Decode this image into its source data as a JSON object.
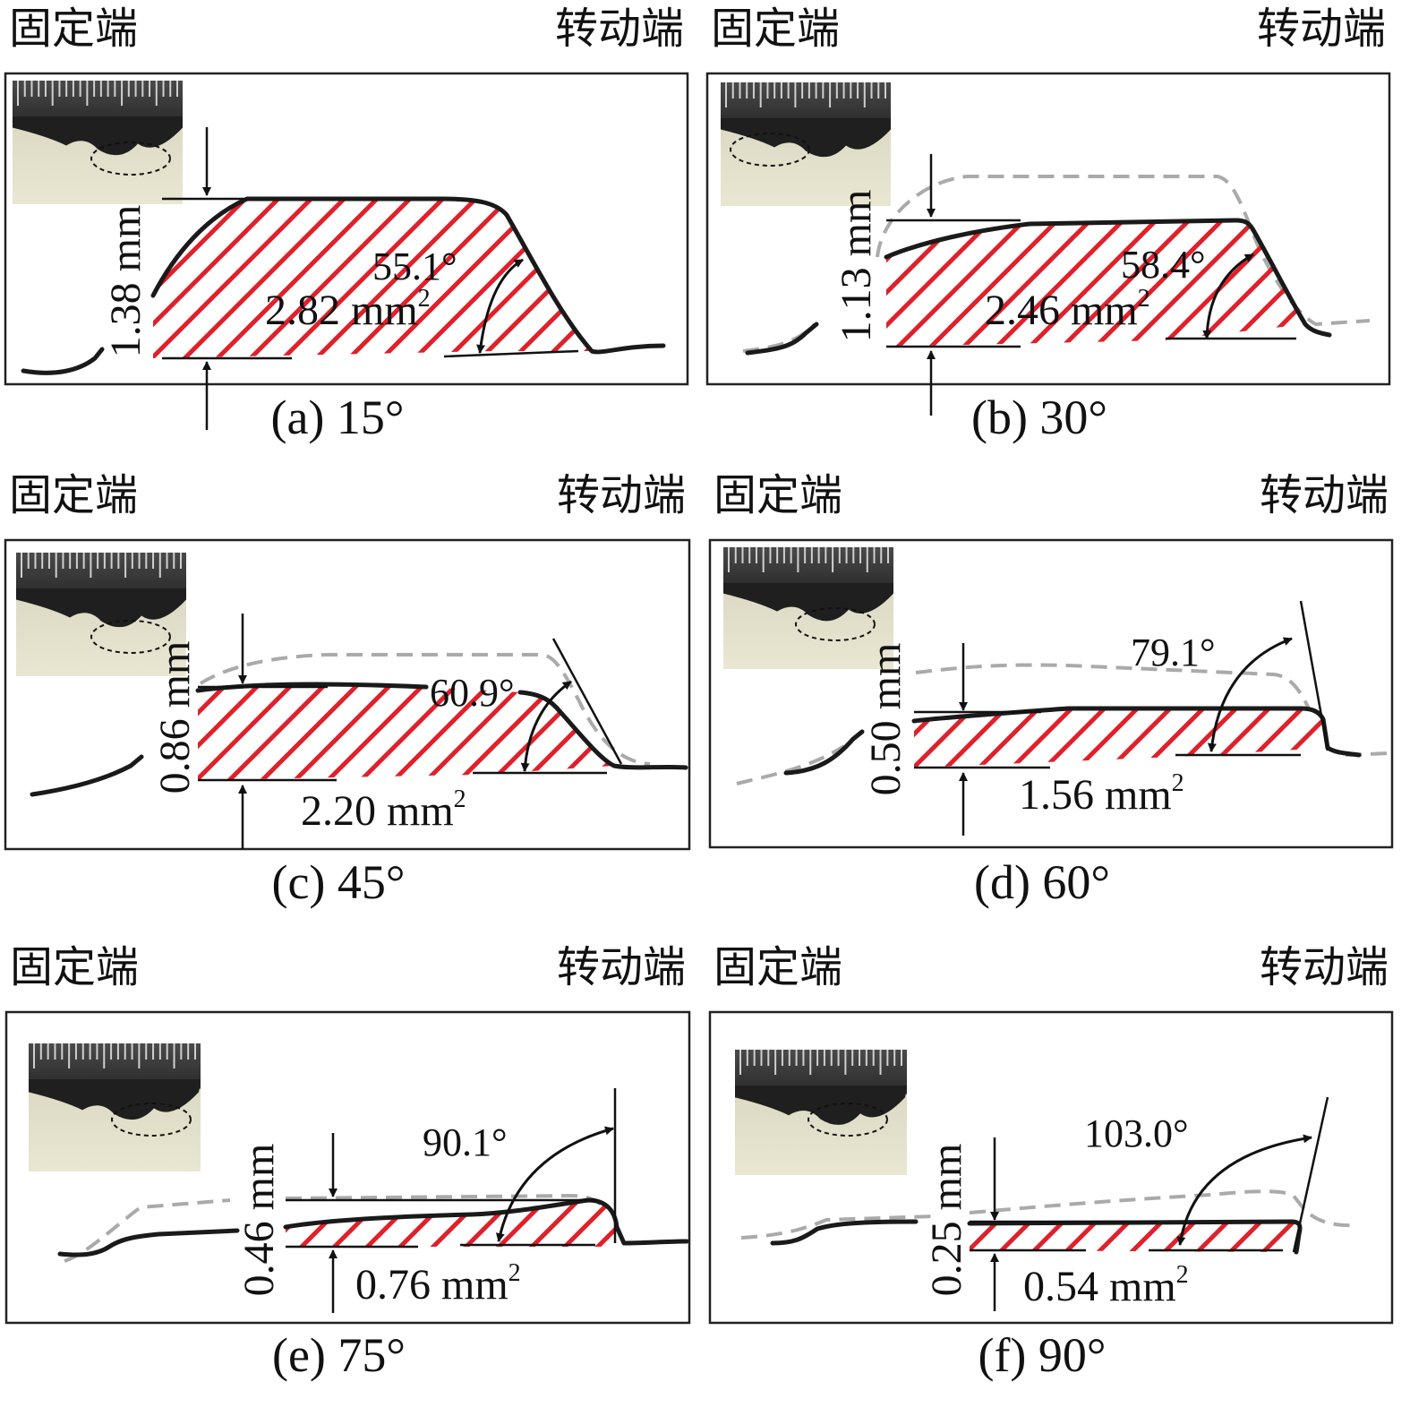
{
  "labels": {
    "fixed_end": "固定端",
    "rotating_end": "转动端",
    "area_unit": "mm",
    "area_exp": "2"
  },
  "colors": {
    "hatch": "#e0202a",
    "profile": "#1a1a1a",
    "reference_profile": "#aaaaaa",
    "frame": "#222222"
  },
  "panels": [
    {
      "id": "a",
      "caption": "(a) 15°",
      "height": "1.38 mm",
      "area": "2.82",
      "angle": "55.1°",
      "reference_shown": false
    },
    {
      "id": "b",
      "caption": "(b) 30°",
      "height": "1.13 mm",
      "area": "2.46",
      "angle": "58.4°",
      "reference_shown": true
    },
    {
      "id": "c",
      "caption": "(c) 45°",
      "height": "0.86 mm",
      "area": "2.20",
      "angle": "60.9°",
      "reference_shown": true
    },
    {
      "id": "d",
      "caption": "(d) 60°",
      "height": "0.50 mm",
      "area": "1.56",
      "angle": "79.1°",
      "reference_shown": true
    },
    {
      "id": "e",
      "caption": "(e) 75°",
      "height": "0.46 mm",
      "area": "0.76",
      "angle": "90.1°",
      "reference_shown": true
    },
    {
      "id": "f",
      "caption": "(f) 90°",
      "height": "0.25 mm",
      "area": "0.54",
      "angle": "103.0°",
      "reference_shown": true
    }
  ]
}
